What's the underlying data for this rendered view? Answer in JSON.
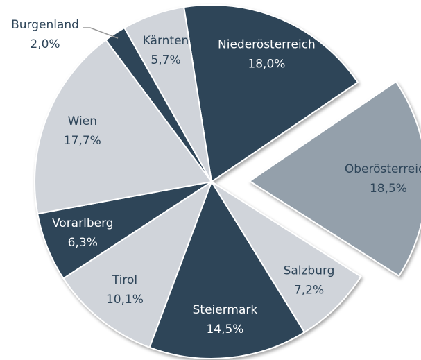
{
  "chart_data": {
    "type": "pie",
    "categories": [
      "Niederösterreich",
      "Oberösterreich",
      "Salzburg",
      "Steiermark",
      "Tirol",
      "Vorarlberg",
      "Wien",
      "Burgenland",
      "Kärnten"
    ],
    "values": [
      18.0,
      18.5,
      7.2,
      14.5,
      10.1,
      6.3,
      17.7,
      2.0,
      5.7
    ],
    "value_labels": [
      "18,0%",
      "18,5%",
      "7,2%",
      "14,5%",
      "10,1%",
      "6,3%",
      "17,7%",
      "2,0%",
      "5,7%"
    ],
    "colors": [
      "#2e4559",
      "#94a0ab",
      "#d0d4da",
      "#2e4559",
      "#d0d4da",
      "#2e4559",
      "#d0d4da",
      "#2e4559",
      "#d0d4da"
    ],
    "explode_index": 1
  }
}
